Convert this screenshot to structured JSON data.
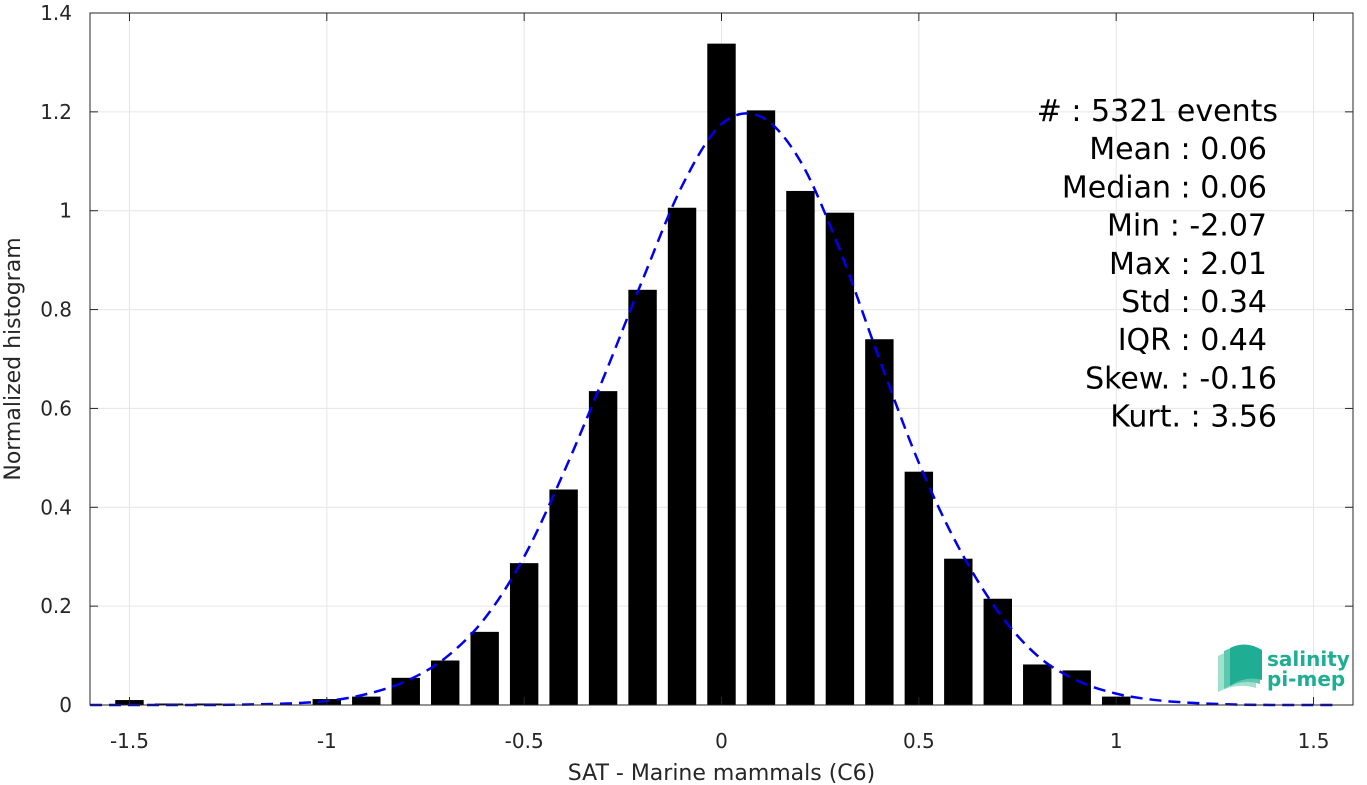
{
  "chart_data": {
    "type": "bar",
    "xlabel": "SAT - Marine mammals (C6)",
    "ylabel": "Normalized histogram",
    "xlim": [
      -1.6,
      1.6
    ],
    "ylim": [
      0,
      1.4
    ],
    "xticks": [
      -1.5,
      -1,
      -0.5,
      0,
      0.5,
      1,
      1.5
    ],
    "xtick_labels": [
      "-1.5",
      "-1",
      "-0.5",
      "0",
      "0.5",
      "1",
      "1.5"
    ],
    "yticks": [
      0,
      0.2,
      0.4,
      0.6,
      0.8,
      1,
      1.2,
      1.4
    ],
    "ytick_labels": [
      "0",
      "0.2",
      "0.4",
      "0.6",
      "0.8",
      "1",
      "1.2",
      "1.4"
    ],
    "grid": true,
    "bar_color": "#000000",
    "bars": {
      "x": [
        -1.5,
        -1.4,
        -1.3,
        -1.2,
        -1.1,
        -1.0,
        -0.9,
        -0.8,
        -0.7,
        -0.6,
        -0.5,
        -0.4,
        -0.3,
        -0.2,
        -0.1,
        0.0,
        0.1,
        0.2,
        0.3,
        0.4,
        0.5,
        0.6,
        0.7,
        0.8,
        0.9,
        1.0,
        1.1,
        1.2,
        1.3,
        1.4,
        1.5
      ],
      "values": [
        0.01,
        0.003,
        0.003,
        0.0,
        0.0,
        0.012,
        0.017,
        0.055,
        0.09,
        0.148,
        0.287,
        0.436,
        0.635,
        0.84,
        1.006,
        1.338,
        1.203,
        1.04,
        0.996,
        0.74,
        0.472,
        0.296,
        0.215,
        0.082,
        0.07,
        0.017,
        0.0,
        0.0,
        0.0,
        0.0,
        0.0
      ]
    },
    "fit_curve": {
      "style": "dashed",
      "color": "#0000ee",
      "x": [
        -1.6,
        -1.5,
        -1.4,
        -1.3,
        -1.2,
        -1.1,
        -1.0,
        -0.9,
        -0.8,
        -0.7,
        -0.6,
        -0.5,
        -0.4,
        -0.3,
        -0.2,
        -0.1,
        0.0,
        0.1,
        0.2,
        0.3,
        0.4,
        0.5,
        0.6,
        0.7,
        0.8,
        0.9,
        1.0,
        1.1,
        1.2,
        1.3,
        1.4,
        1.5,
        1.55
      ],
      "y": [
        0.0,
        0.0,
        0.0,
        0.0,
        0.001,
        0.003,
        0.008,
        0.022,
        0.048,
        0.095,
        0.175,
        0.3,
        0.47,
        0.66,
        0.86,
        1.05,
        1.175,
        1.19,
        1.1,
        0.92,
        0.7,
        0.49,
        0.32,
        0.19,
        0.1,
        0.05,
        0.023,
        0.01,
        0.004,
        0.001,
        0.0,
        0.0,
        0.0
      ]
    },
    "annotations": [
      "#  : 5321 events",
      "Mean : 0.06",
      "Median : 0.06",
      "Min : -2.07",
      "Max : 2.01",
      "Std : 0.34",
      "IQR : 0.44",
      "Skew. : -0.16",
      "Kurt. : 3.56"
    ]
  },
  "logo": {
    "line1": "salinity",
    "line2": "pi-mep"
  }
}
